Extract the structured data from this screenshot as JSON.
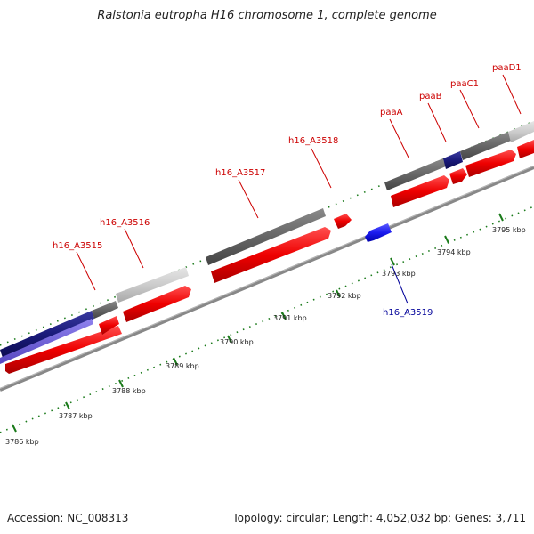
{
  "title": "Ralstonia eutropha H16 chromosome 1, complete genome",
  "footer": {
    "accession": "Accession: NC_008313",
    "summary": "Topology: circular; Length: 4,052,032 bp; Genes: 3,711"
  },
  "colors": {
    "forward_cds": "#ee0000",
    "reverse_cds": "#0000cc",
    "forward_label": "#cc0000",
    "reverse_label": "#000099",
    "tick": "#1a7a1a",
    "backbone": "#888888",
    "feature_dark_gray": "#666666",
    "feature_light_gray": "#c8c8c8",
    "feature_navy": "#1a1a7a",
    "feature_slate": "#6a5acd"
  },
  "scale": {
    "unit": "kbp",
    "labels": [
      "3786 kbp",
      "3787 kbp",
      "3788 kbp",
      "3789 kbp",
      "3790 kbp",
      "3791 kbp",
      "3792 kbp",
      "3793 kbp",
      "3794 kbp",
      "3795 kbp"
    ]
  },
  "genes_forward": [
    {
      "name": "h16_A3515"
    },
    {
      "name": "h16_A3516"
    },
    {
      "name": "h16_A3517"
    },
    {
      "name": "h16_A3518"
    },
    {
      "name": "paaA"
    },
    {
      "name": "paaB"
    },
    {
      "name": "paaC1"
    },
    {
      "name": "paaD1"
    }
  ],
  "genes_reverse": [
    {
      "name": "h16_A3519"
    }
  ]
}
